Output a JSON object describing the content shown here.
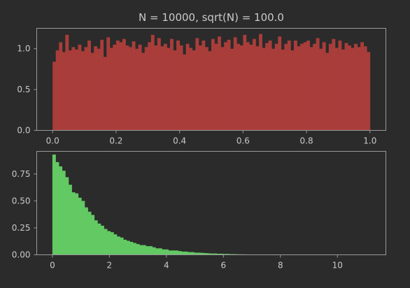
{
  "chart_data": [
    {
      "type": "bar",
      "title": "N = 10000, sqrt(N) = 100.0",
      "xlabel": "",
      "ylabel": "",
      "xlim": [
        -0.05,
        1.05
      ],
      "ylim": [
        0,
        1.25
      ],
      "xticks": [
        0.0,
        0.2,
        0.4,
        0.6,
        0.8,
        1.0
      ],
      "xtick_labels": [
        "0.0",
        "0.2",
        "0.4",
        "0.6",
        "0.8",
        "1.0"
      ],
      "yticks": [
        0.0,
        0.5,
        1.0
      ],
      "ytick_labels": [
        "0.0",
        "0.5",
        "1.0"
      ],
      "color": "#a93d3a",
      "bin_start": 0,
      "bin_width": 0.01,
      "values": [
        0.84,
        0.98,
        1.08,
        0.96,
        1.17,
        0.98,
        1.02,
        0.99,
        1.05,
        0.97,
        1.02,
        1.1,
        0.95,
        1.03,
        1.0,
        1.11,
        0.9,
        1.14,
        1.01,
        1.05,
        1.1,
        1.08,
        1.12,
        1.04,
        1.02,
        1.09,
        1.0,
        1.05,
        0.95,
        1.02,
        1.08,
        1.17,
        1.04,
        1.13,
        1.03,
        1.06,
        1.01,
        1.12,
        0.98,
        1.1,
        1.04,
        0.93,
        1.06,
        1.01,
        0.98,
        1.13,
        1.04,
        1.1,
        1.02,
        0.97,
        1.12,
        1.06,
        1.15,
        1.02,
        1.08,
        1.11,
        1.0,
        1.14,
        1.06,
        1.04,
        1.17,
        1.08,
        1.05,
        1.12,
        1.03,
        1.18,
        1.01,
        1.07,
        1.1,
        1.0,
        1.06,
        1.15,
        0.99,
        1.06,
        1.1,
        0.98,
        1.1,
        1.03,
        1.06,
        1.08,
        1.1,
        1.02,
        1.06,
        1.13,
        1.0,
        1.08,
        0.95,
        1.06,
        1.12,
        1.01,
        1.1,
        0.99,
        1.07,
        1.04,
        1.01,
        1.06,
        1.02,
        1.08,
        1.03,
        0.96
      ]
    },
    {
      "type": "bar",
      "title": "",
      "xlabel": "",
      "ylabel": "",
      "xlim": [
        -0.55,
        11.7
      ],
      "ylim": [
        0,
        0.96
      ],
      "xticks": [
        0,
        2,
        4,
        6,
        8,
        10
      ],
      "xtick_labels": [
        "0",
        "2",
        "4",
        "6",
        "8",
        "10"
      ],
      "yticks": [
        0.0,
        0.25,
        0.5,
        0.75
      ],
      "ytick_labels": [
        "0.00",
        "0.25",
        "0.50",
        "0.75"
      ],
      "color": "#63c963",
      "bin_start": 0,
      "bin_width": 0.113,
      "values": [
        0.93,
        0.86,
        0.82,
        0.78,
        0.72,
        0.65,
        0.58,
        0.57,
        0.53,
        0.5,
        0.44,
        0.4,
        0.37,
        0.32,
        0.29,
        0.27,
        0.24,
        0.22,
        0.21,
        0.19,
        0.17,
        0.16,
        0.14,
        0.13,
        0.12,
        0.11,
        0.1,
        0.09,
        0.09,
        0.08,
        0.08,
        0.07,
        0.06,
        0.06,
        0.05,
        0.05,
        0.04,
        0.04,
        0.04,
        0.035,
        0.03,
        0.03,
        0.025,
        0.025,
        0.02,
        0.02,
        0.018,
        0.016,
        0.014,
        0.012,
        0.012,
        0.01,
        0.01,
        0.008,
        0.008,
        0.006,
        0.006,
        0.005,
        0.004,
        0.004,
        0.003,
        0.003,
        0.002,
        0.002,
        0.002,
        0.001,
        0.001,
        0.001,
        0.001,
        0.001,
        0.0,
        0.0,
        0.0,
        0.0,
        0.0,
        0.0,
        0.0,
        0.0,
        0.0,
        0.0,
        0.0,
        0.0,
        0.0,
        0.0,
        0.0,
        0.0,
        0.0,
        0.0,
        0.0,
        0.0,
        0.0,
        0.0,
        0.0,
        0.0,
        0.0,
        0.0,
        0.0,
        0.0,
        0.0,
        0.0
      ]
    }
  ]
}
